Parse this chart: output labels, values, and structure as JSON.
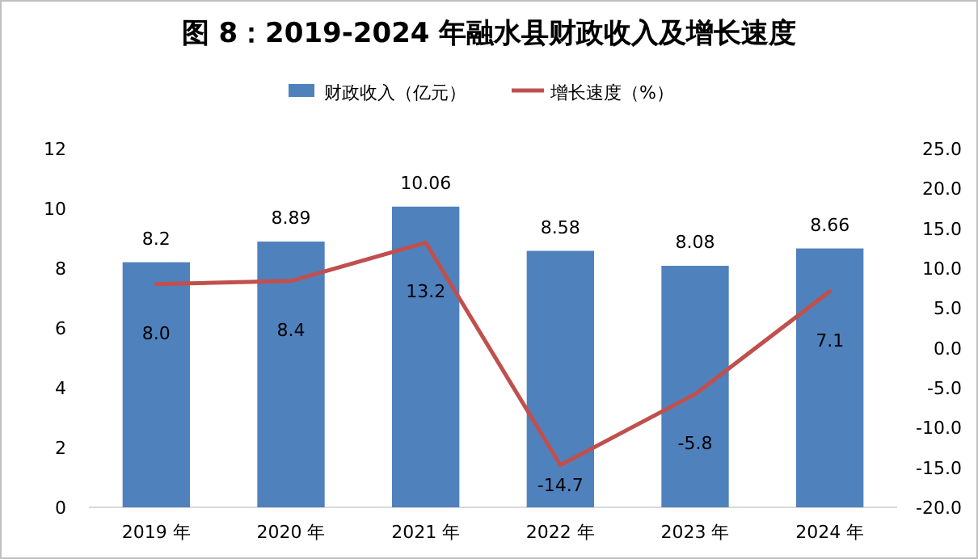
{
  "chart_data": {
    "type": "bar",
    "title": "图 8：2019-2024 年融水县财政收入及增长速度",
    "categories": [
      "2019 年",
      "2020 年",
      "2021 年",
      "2022 年",
      "2023 年",
      "2024 年"
    ],
    "series": [
      {
        "name": "财政收入（亿元）",
        "color": "#4f81bd",
        "values": [
          8.2,
          8.89,
          10.06,
          8.58,
          8.08,
          8.66
        ],
        "value_labels": [
          "8.2",
          "8.89",
          "10.06",
          "8.58",
          "8.08",
          "8.66"
        ]
      },
      {
        "name": "增长速度（%）",
        "type": "line",
        "axis": "y2",
        "color": "#c0504d",
        "values": [
          8.0,
          8.4,
          13.2,
          -14.7,
          -5.8,
          7.1
        ],
        "value_labels": [
          "8.0",
          "8.4",
          "13.2",
          "-14.7",
          "-5.8",
          "7.1"
        ]
      }
    ],
    "ylim": [
      0,
      12
    ],
    "yticks": [
      0,
      2,
      4,
      6,
      8,
      10,
      12
    ],
    "y2lim": [
      -20,
      25
    ],
    "y2ticks": [
      {
        "value": -20,
        "label": "-20.0"
      },
      {
        "value": -15,
        "label": "-15.0"
      },
      {
        "value": -10,
        "label": "-10.0"
      },
      {
        "value": -5,
        "label": "-5.0"
      },
      {
        "value": 0,
        "label": "0.0"
      },
      {
        "value": 5,
        "label": "5.0"
      },
      {
        "value": 10,
        "label": "10.0"
      },
      {
        "value": 15,
        "label": "15.0"
      },
      {
        "value": 20,
        "label": "20.0"
      },
      {
        "value": 25,
        "label": "25.0"
      }
    ],
    "legend": "top",
    "grid": false
  }
}
